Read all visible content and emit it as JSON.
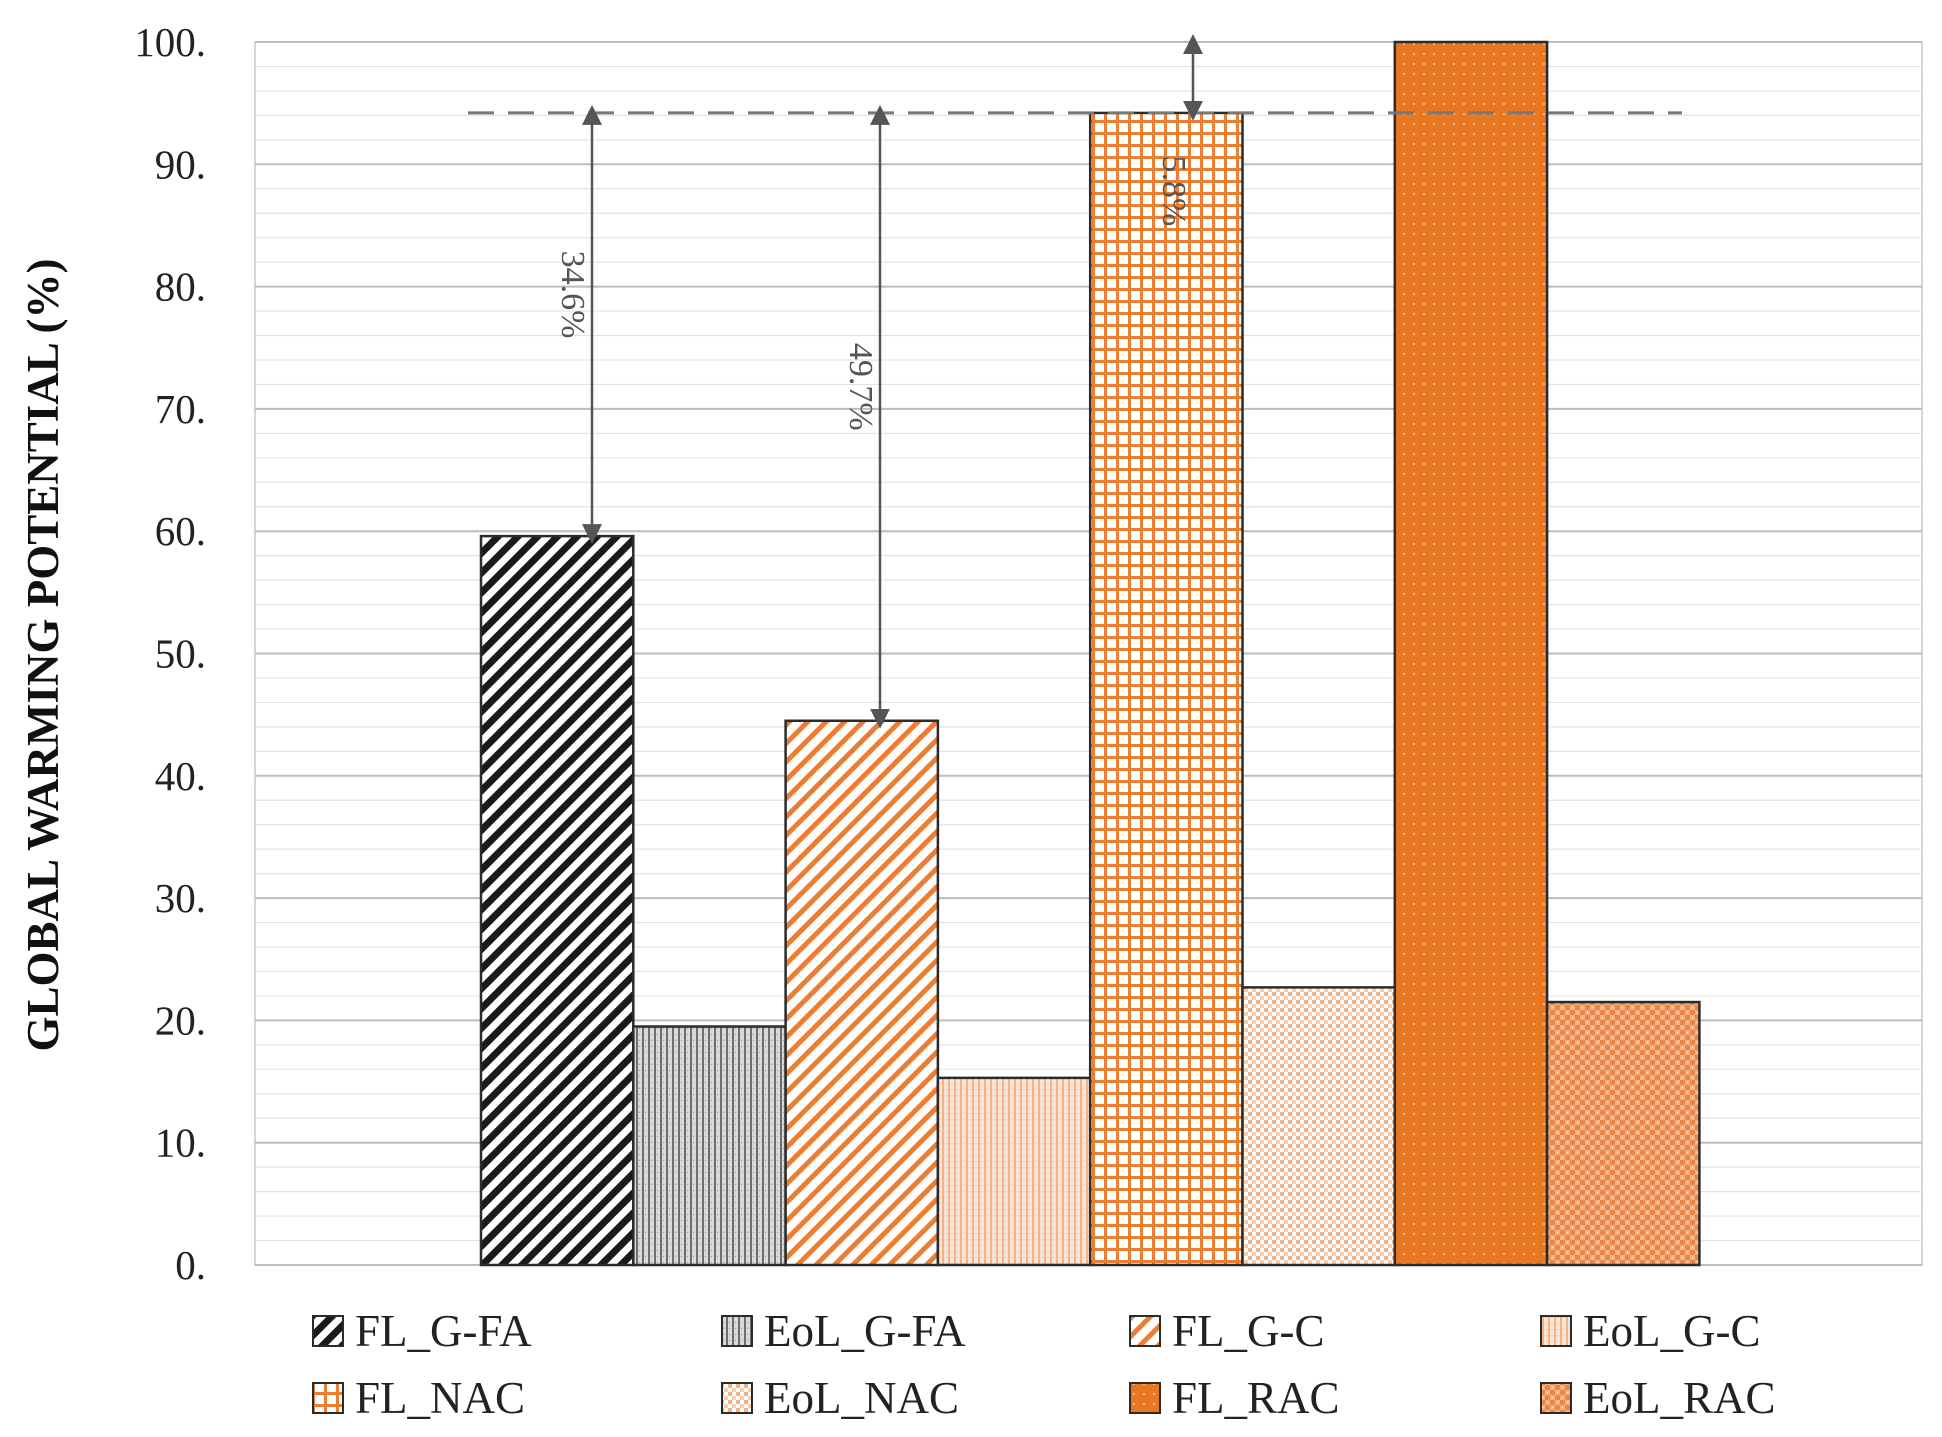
{
  "chart_data": {
    "type": "bar",
    "title": "",
    "xlabel": "",
    "ylabel": "GLOBAL WARMING POTENTIAL (%)",
    "ylim": [
      0,
      100
    ],
    "ytick_step": 10,
    "yticks": [
      "0.",
      "10.",
      "20.",
      "30.",
      "40.",
      "50.",
      "60.",
      "70.",
      "80.",
      "90.",
      "100."
    ],
    "minor_grid_step": 2,
    "reference_line": 94.2,
    "bars": [
      {
        "name": "FL_G-FA",
        "value": 59.6,
        "pattern": "diag-black",
        "fill": "#1a1a1a"
      },
      {
        "name": "EoL_G-FA",
        "value": 19.5,
        "pattern": "vertical-gray",
        "fill": "#8c8c8c"
      },
      {
        "name": "FL_G-C",
        "value": 44.5,
        "pattern": "diag-orange",
        "fill": "#ed7d31"
      },
      {
        "name": "EoL_G-C",
        "value": 15.3,
        "pattern": "vertical-peach",
        "fill": "#f4b183"
      },
      {
        "name": "FL_NAC",
        "value": 94.2,
        "pattern": "grid-orange",
        "fill": "#ed7d31"
      },
      {
        "name": "EoL_NAC",
        "value": 22.7,
        "pattern": "dots-peach",
        "fill": "#f4b183"
      },
      {
        "name": "FL_RAC",
        "value": 100,
        "pattern": "solid-orange",
        "fill": "#e87722"
      },
      {
        "name": "EoL_RAC",
        "value": 21.5,
        "pattern": "checker-orange",
        "fill": "#f0a070"
      }
    ],
    "annotations": [
      {
        "label": "34.6%",
        "from_bar": "FL_G-FA",
        "from": 94.2,
        "to": 59.6
      },
      {
        "label": "49.7%",
        "from_bar": "FL_G-C",
        "from": 94.2,
        "to": 44.5
      },
      {
        "label": "5.8%",
        "from_bar": "FL_NAC",
        "from": 100,
        "to": 94.2
      }
    ],
    "legend": {
      "placement": "bottom",
      "columns": 4,
      "items": [
        "FL_G-FA",
        "EoL_G-FA",
        "FL_G-C",
        "EoL_G-C",
        "FL_NAC",
        "EoL_NAC",
        "FL_RAC",
        "EoL_RAC"
      ]
    }
  }
}
